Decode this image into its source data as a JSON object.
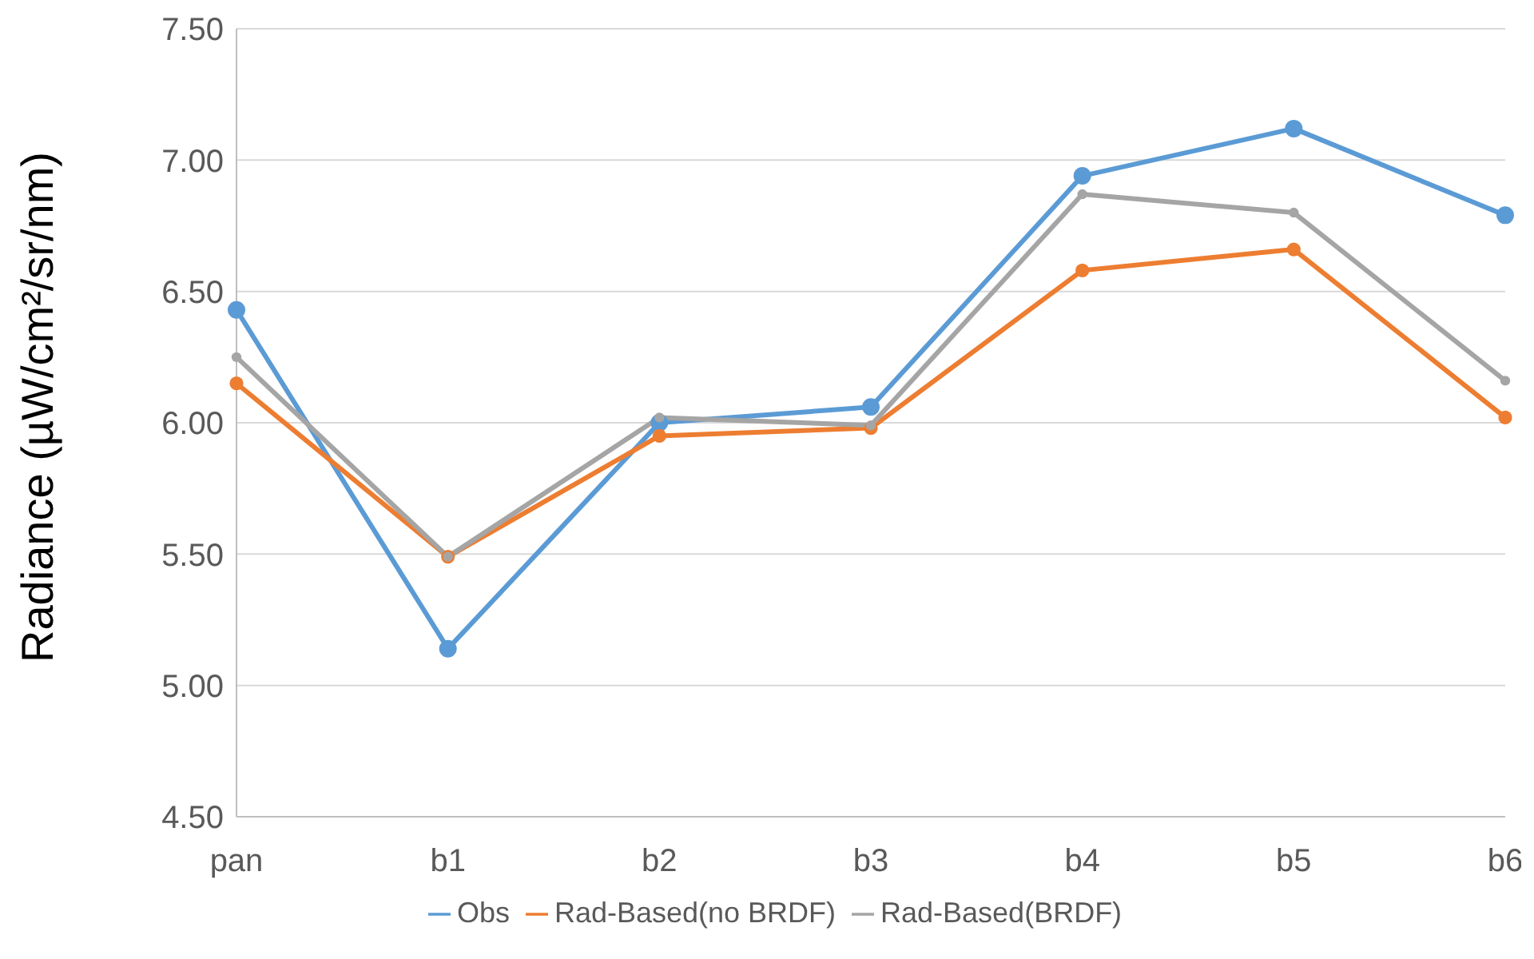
{
  "chart_data": {
    "type": "line",
    "ylabel": "Radiance (µW/cm²/sr/nm)",
    "categories": [
      "pan",
      "b1",
      "b2",
      "b3",
      "b4",
      "b5",
      "b6"
    ],
    "series": [
      {
        "name": "Obs",
        "color": "#5b9bd5",
        "values": [
          6.43,
          5.14,
          6.0,
          6.06,
          6.94,
          7.12,
          6.79
        ]
      },
      {
        "name": "Rad-Based(no BRDF)",
        "color": "#ed7d31",
        "values": [
          6.15,
          5.49,
          5.95,
          5.98,
          6.58,
          6.66,
          6.02
        ]
      },
      {
        "name": "Rad-Based(BRDF)",
        "color": "#a5a5a5",
        "values": [
          6.25,
          5.49,
          6.02,
          5.99,
          6.87,
          6.8,
          6.16
        ]
      }
    ],
    "ylim": [
      4.5,
      7.5
    ],
    "yticks": [
      {
        "value": 4.5,
        "label": "4.50"
      },
      {
        "value": 5,
        "label": "5.00"
      },
      {
        "value": 5.5,
        "label": "5.50"
      },
      {
        "value": 6,
        "label": "6.00"
      },
      {
        "value": 6.5,
        "label": "6.50"
      },
      {
        "value": 7,
        "label": "7.00"
      },
      {
        "value": 7.5,
        "label": "7.50"
      }
    ],
    "grid": "y",
    "legend": "bottom",
    "marker": "circle",
    "line_style": "solid"
  }
}
